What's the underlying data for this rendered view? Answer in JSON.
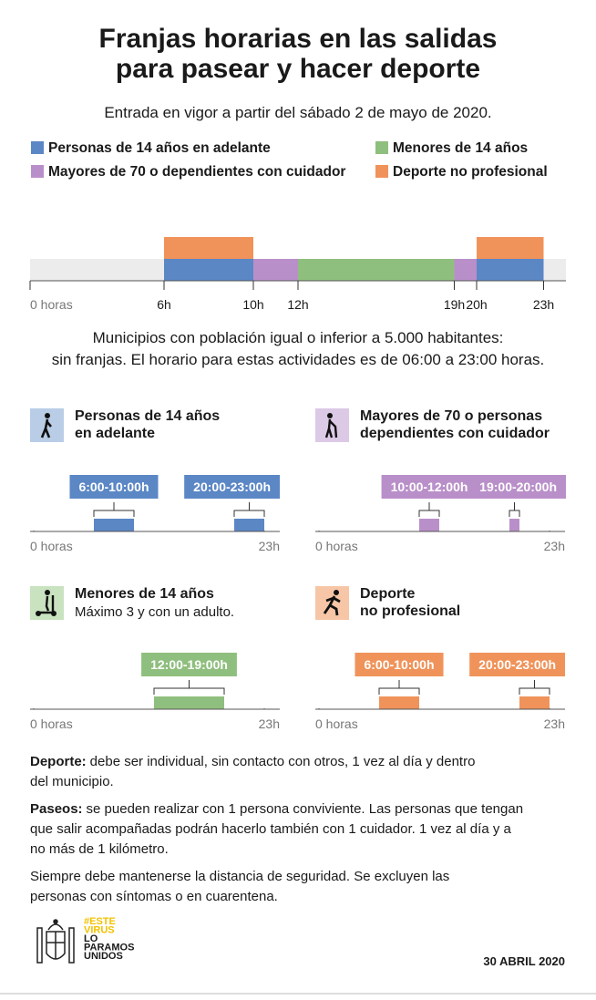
{
  "title": [
    "Franjas horarias en las salidas",
    "para pasear y hacer deporte"
  ],
  "subtitle": "Entrada en vigor a partir del sábado 2 de mayo de 2020.",
  "legend": [
    {
      "name": "Personas de 14 años en adelante",
      "color": "#5b87c5",
      "intervals": [
        [
          6,
          10
        ],
        [
          20,
          23
        ]
      ]
    },
    {
      "name": "Menores de 14 años",
      "color": "#8fbf7e",
      "intervals": [
        [
          12,
          19
        ]
      ]
    },
    {
      "name": "Mayores de 70 o dependientes con cuidador",
      "color": "#b98fc9",
      "intervals": [
        [
          10,
          12
        ],
        [
          19,
          20
        ]
      ]
    },
    {
      "name": "Deporte no profesional",
      "color": "#f0935a",
      "intervals": [
        [
          6,
          10
        ],
        [
          20,
          23
        ]
      ]
    }
  ],
  "timeline": {
    "xlim": [
      0,
      24
    ],
    "xticks": [
      {
        "value": 0,
        "label": "0 horas"
      },
      {
        "value": 6,
        "label": "6h"
      },
      {
        "value": 10,
        "label": "10h"
      },
      {
        "value": 12,
        "label": "12h"
      },
      {
        "value": 19,
        "label": "19h"
      },
      {
        "value": 20,
        "label": "20h"
      },
      {
        "value": 23,
        "label": "23h"
      }
    ]
  },
  "note": [
    "Municipios con población igual o inferior a 5.000 habitantes:",
    "sin franjas. El horario para estas actividades es de 06:00 a 23:00 horas."
  ],
  "panels": [
    {
      "title": [
        "Personas de 14 años",
        "en adelante"
      ],
      "color": "#5b87c5",
      "intervals": [
        {
          "start": 6,
          "end": 10,
          "label": "6:00-10:00h"
        },
        {
          "start": 20,
          "end": 23,
          "label": "20:00-23:00h"
        }
      ],
      "xlim": [
        0,
        24
      ],
      "xticks": [
        {
          "value": 0,
          "label": "0 horas"
        },
        {
          "value": 23,
          "label": "23h"
        }
      ]
    },
    {
      "title": [
        "Mayores de 70 o personas",
        "dependientes con cuidador"
      ],
      "color": "#b98fc9",
      "intervals": [
        {
          "start": 10,
          "end": 12,
          "label": "10:00-12:00h"
        },
        {
          "start": 19,
          "end": 20,
          "label": "19:00-20:00h"
        }
      ],
      "xlim": [
        0,
        24
      ],
      "xticks": [
        {
          "value": 0,
          "label": "0 horas"
        },
        {
          "value": 23,
          "label": "23h"
        }
      ]
    },
    {
      "title": [
        "Menores de 14 años"
      ],
      "subtitle": "Máximo 3 y con un adulto.",
      "color": "#8fbf7e",
      "intervals": [
        {
          "start": 12,
          "end": 19,
          "label": "12:00-19:00h"
        }
      ],
      "xlim": [
        0,
        24
      ],
      "xticks": [
        {
          "value": 0,
          "label": "0 horas"
        },
        {
          "value": 23,
          "label": "23h"
        }
      ]
    },
    {
      "title": [
        "Deporte",
        "no profesional"
      ],
      "color": "#f0935a",
      "intervals": [
        {
          "start": 6,
          "end": 10,
          "label": "6:00-10:00h"
        },
        {
          "start": 20,
          "end": 23,
          "label": "20:00-23:00h"
        }
      ],
      "xlim": [
        0,
        24
      ],
      "xticks": [
        {
          "value": 0,
          "label": "0 horas"
        },
        {
          "value": 23,
          "label": "23h"
        }
      ]
    }
  ],
  "paragraphs": [
    {
      "lead": "Deporte:",
      "lines": [
        "debe ser individual, sin contacto con otros, 1 vez al día y dentro",
        "del municipio."
      ]
    },
    {
      "lead": "Paseos:",
      "lines": [
        "se pueden realizar con 1 persona conviviente. Las personas que tengan",
        "que salir acompañadas podrán hacerlo también con 1 cuidador. 1 vez al día y a",
        "no más de 1 kilómetro."
      ]
    },
    {
      "lines": [
        "Siempre debe mantenerse la distancia de seguridad. Se excluyen las",
        "personas con síntomas o en cuarentena."
      ]
    }
  ],
  "logo": [
    "#ESTE",
    "VIRUS",
    "LO",
    "PARAMOS",
    "UNIDOS"
  ],
  "date": "30 ABRIL 2020"
}
